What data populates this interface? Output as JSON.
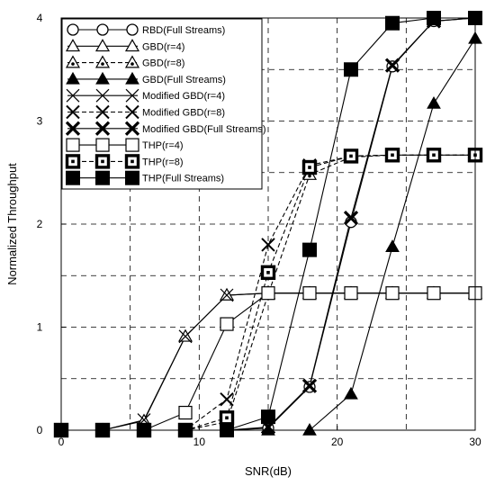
{
  "chart_data": {
    "type": "line",
    "title": "",
    "xlabel": "SNR(dB)",
    "ylabel": "Normalized Throughput",
    "xlim": [
      0,
      30
    ],
    "ylim": [
      0,
      4
    ],
    "xticks": [
      "0",
      "10",
      "20",
      "30"
    ],
    "yticks": [
      "0",
      "1",
      "2",
      "3",
      "4"
    ],
    "grid": true,
    "grid_style": "dashed",
    "legend_position": "top-left",
    "x": [
      0,
      3,
      6,
      9,
      12,
      15,
      18,
      21,
      24,
      27,
      30
    ],
    "series": [
      {
        "name": "RBD(Full Streams)",
        "marker": "circle-open",
        "line": "solid",
        "color": "#000000",
        "values": [
          0,
          0,
          0,
          0,
          0,
          0.02,
          0.42,
          2.02,
          3.53,
          3.97,
          4.0
        ]
      },
      {
        "name": "GBD(r=4)",
        "marker": "triangle-open",
        "line": "solid",
        "color": "#000000",
        "values": [
          0,
          0,
          0.09,
          0.91,
          1.31,
          1.33,
          1.33,
          1.33,
          1.33,
          1.33,
          1.33
        ]
      },
      {
        "name": "GBD(r=8)",
        "marker": "triangle-dotted",
        "line": "dashed",
        "color": "#000000",
        "values": [
          0,
          0,
          0,
          0,
          0.08,
          1.32,
          2.48,
          2.65,
          2.67,
          2.67,
          2.67
        ]
      },
      {
        "name": "GBD(Full Streams)",
        "marker": "triangle-filled",
        "line": "solid",
        "color": "#000000",
        "values": [
          0,
          0,
          0,
          0,
          0,
          0,
          0,
          0.35,
          1.78,
          3.17,
          3.8
        ]
      },
      {
        "name": "Modified GBD(r=4)",
        "marker": "x-thin",
        "line": "solid",
        "color": "#000000",
        "values": [
          0,
          0,
          0.1,
          0.91,
          1.31,
          1.33,
          1.33,
          1.33,
          1.33,
          1.33,
          1.33
        ]
      },
      {
        "name": "Modified GBD(r=8)",
        "marker": "x-dashed",
        "line": "dashed",
        "color": "#000000",
        "values": [
          0,
          0,
          0,
          0,
          0.3,
          1.8,
          2.57,
          2.66,
          2.67,
          2.67,
          2.67
        ]
      },
      {
        "name": "Modified GBD(Full Streams)",
        "marker": "x-bold",
        "line": "solid",
        "color": "#000000",
        "values": [
          0,
          0,
          0,
          0,
          0,
          0.03,
          0.43,
          2.06,
          3.54,
          3.97,
          4.0
        ]
      },
      {
        "name": "THP(r=4)",
        "marker": "square-open",
        "line": "solid",
        "color": "#000000",
        "values": [
          0,
          0,
          0,
          0.17,
          1.03,
          1.33,
          1.33,
          1.33,
          1.33,
          1.33,
          1.33
        ]
      },
      {
        "name": "THP(r=8)",
        "marker": "square-dotted",
        "line": "dashed",
        "color": "#000000",
        "values": [
          0,
          0,
          0,
          0,
          0.12,
          1.53,
          2.55,
          2.66,
          2.67,
          2.67,
          2.67
        ]
      },
      {
        "name": "THP(Full Streams)",
        "marker": "square-filled",
        "line": "solid",
        "color": "#000000",
        "values": [
          0,
          0,
          0,
          0,
          0,
          0.13,
          1.75,
          3.5,
          3.95,
          4.0,
          4.0
        ]
      }
    ]
  }
}
